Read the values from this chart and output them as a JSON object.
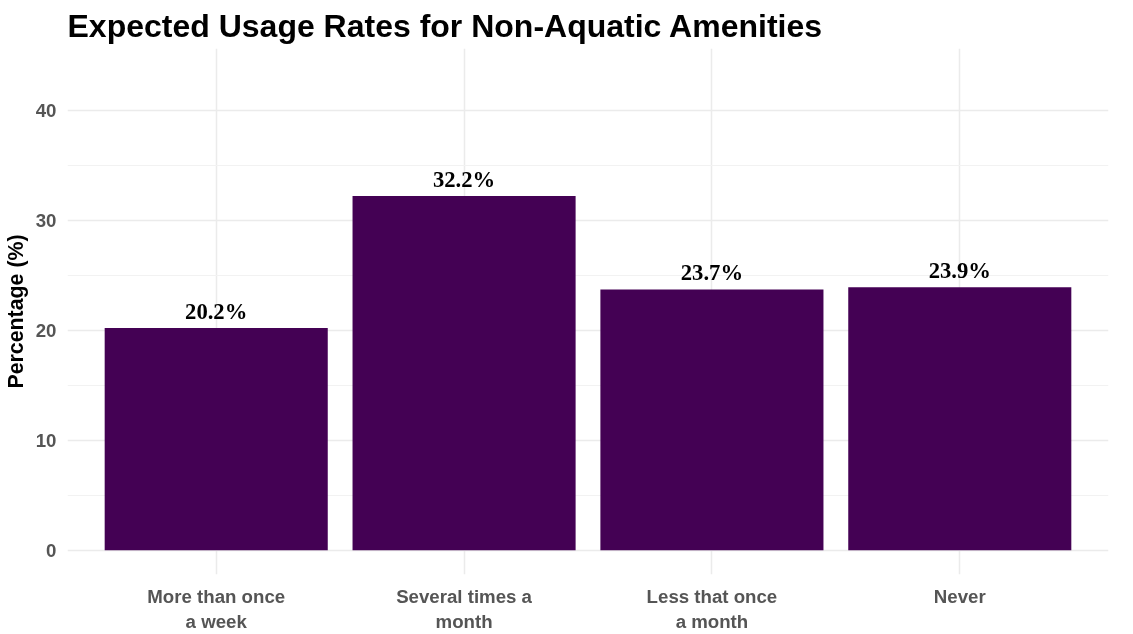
{
  "chart_data": {
    "type": "bar",
    "title": "Expected Usage Rates for Non-Aquatic Amenities",
    "ylabel": "Percentage (%)",
    "categories": [
      "More than once a week",
      "Several times a month",
      "Less that once a month",
      "Never"
    ],
    "values": [
      20.2,
      32.2,
      23.7,
      23.9
    ],
    "color": "#440154",
    "value_labels": [
      "20.2%",
      "32.2%",
      "23.7%",
      "23.9%"
    ],
    "ylim": [
      -2.2,
      45.6
    ],
    "yticks": [
      0,
      10,
      20,
      30,
      40
    ],
    "grid": true
  }
}
